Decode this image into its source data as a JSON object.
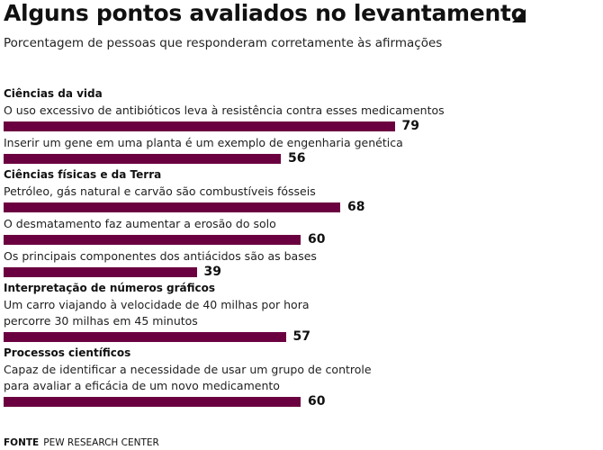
{
  "title": "Alguns pontos avaliados no levantamento",
  "subtitle": "Porcentagem de pessoas que responderam corretamente às afirmações",
  "source_label": "FONTE",
  "source": "PEW RESEARCH CENTER",
  "colors": {
    "bar": "#6b0040"
  },
  "chart_data": {
    "type": "bar",
    "orientation": "horizontal",
    "title": "Alguns pontos avaliados no levantamento",
    "subtitle": "Porcentagem de pessoas que responderam corretamente às afirmações",
    "xlim": [
      0,
      100
    ],
    "groups": [
      "Ciências da vida",
      "Ciências físicas e da Terra",
      "Interpretação de números gráficos",
      "Processos científicos"
    ],
    "items": [
      {
        "group": 0,
        "lines": [
          "O uso excessivo de antibióticos leva à resistência contra esses medicamentos"
        ],
        "value": 79
      },
      {
        "group": 0,
        "lines": [
          "Inserir um gene em uma planta é um exemplo de engenharia genética"
        ],
        "value": 56
      },
      {
        "group": 1,
        "lines": [
          "Petróleo, gás natural e carvão são combustíveis fósseis"
        ],
        "value": 68
      },
      {
        "group": 1,
        "lines": [
          "O desmatamento faz aumentar a erosão do solo"
        ],
        "value": 60
      },
      {
        "group": 1,
        "lines": [
          "Os principais componentes dos antiácidos são as bases"
        ],
        "value": 39
      },
      {
        "group": 2,
        "lines": [
          "Um carro viajando à velocidade de 40 milhas por hora",
          "percorre 30 milhas em 45 minutos"
        ],
        "value": 57
      },
      {
        "group": 3,
        "lines": [
          "Capaz de identificar a necessidade de usar um grupo de controle",
          "para avaliar a eficácia de um novo medicamento"
        ],
        "value": 60
      }
    ]
  }
}
